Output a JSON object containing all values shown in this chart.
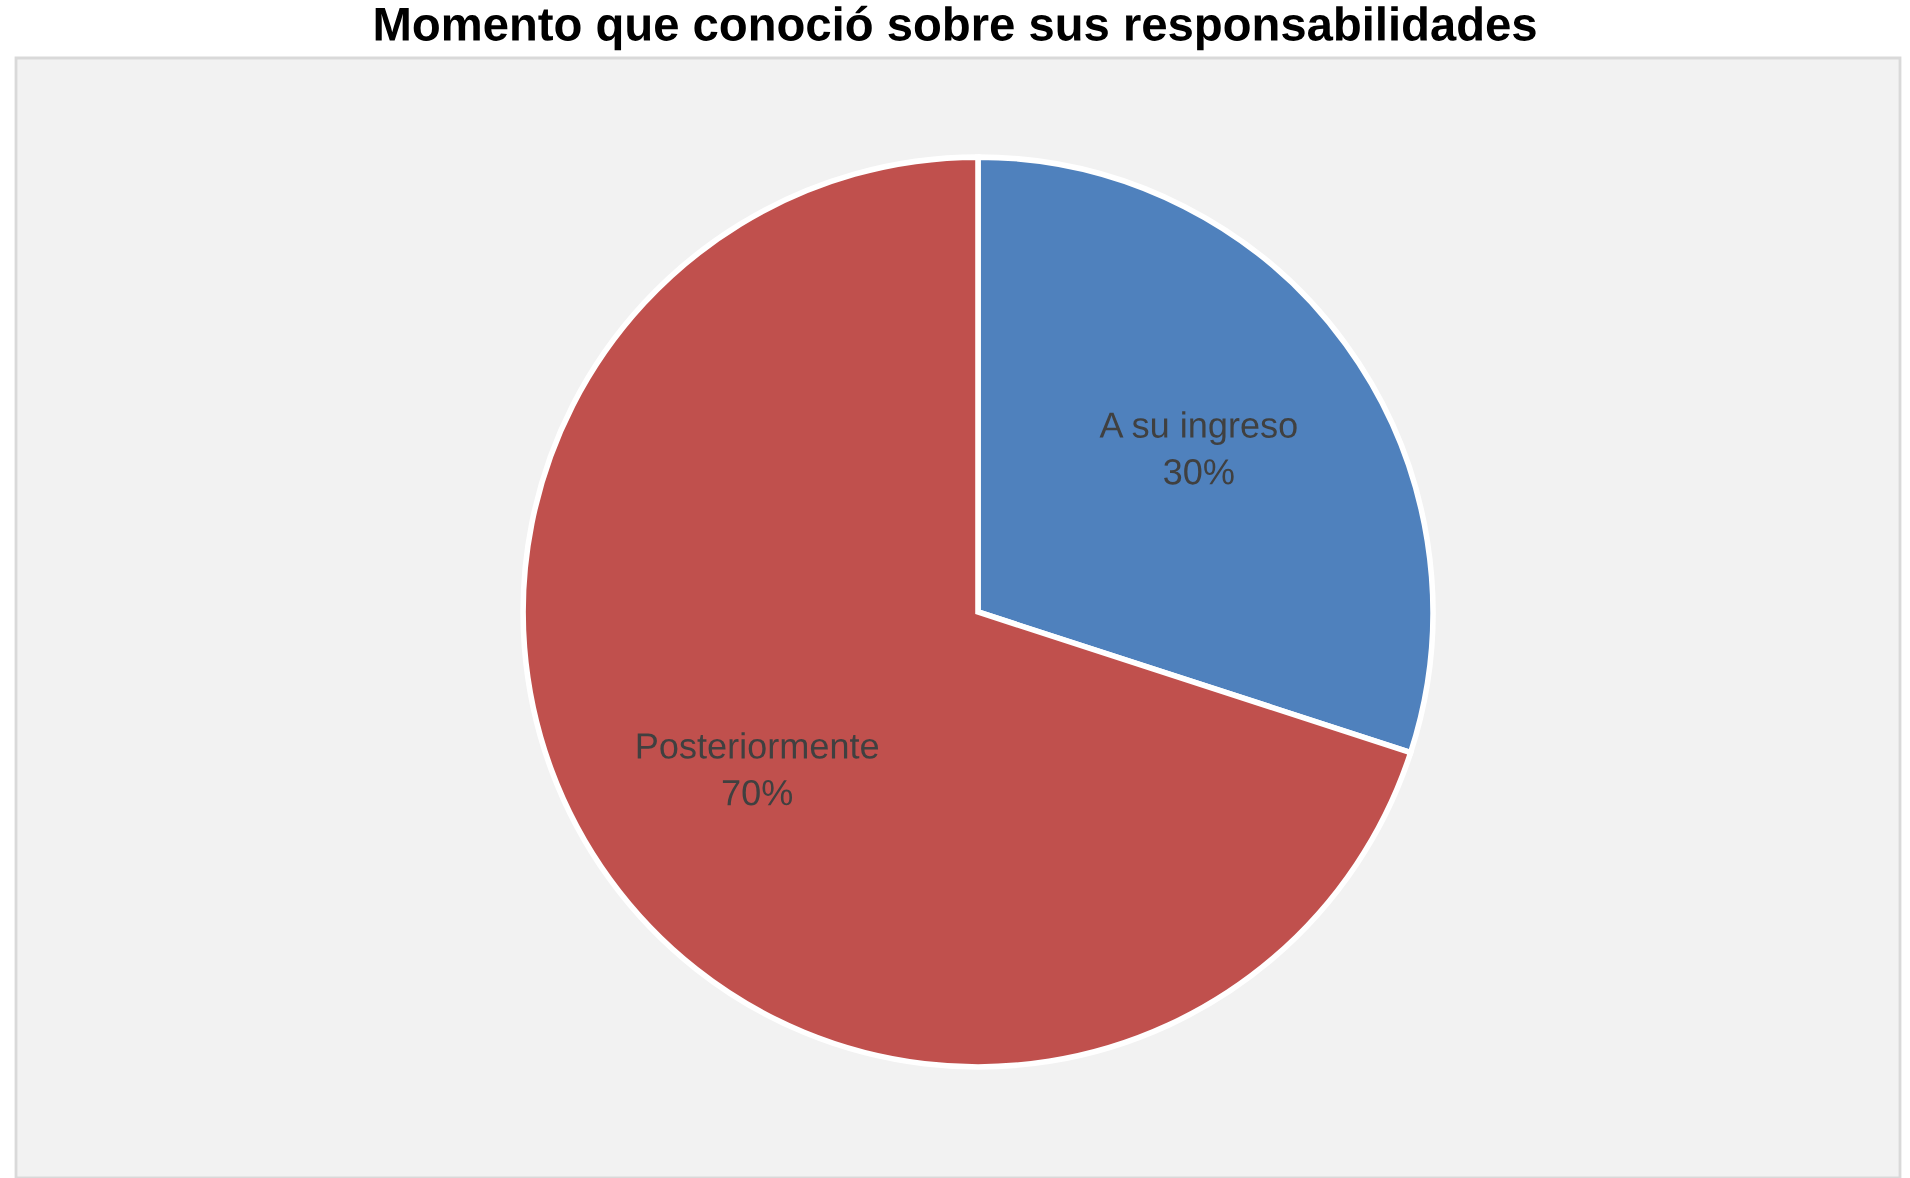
{
  "chart_data": {
    "type": "pie",
    "title": "Momento que conoció sobre sus responsabilidades",
    "categories": [
      "A su ingreso",
      "Posteriormente"
    ],
    "values": [
      30,
      70
    ],
    "colors": [
      "#4f81bd",
      "#c0504d"
    ],
    "value_labels": [
      "30%",
      "70%"
    ],
    "legend": false
  }
}
